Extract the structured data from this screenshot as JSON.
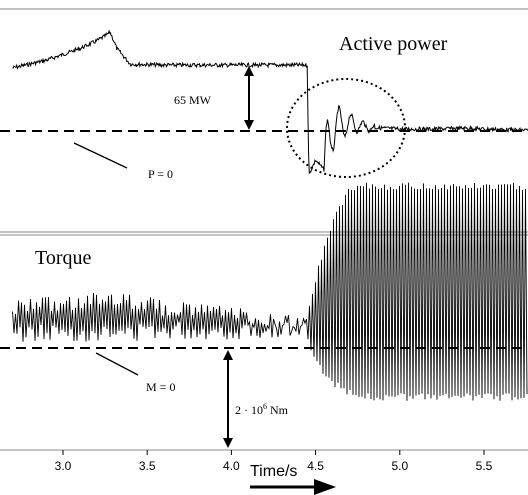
{
  "chart_data": [
    {
      "type": "line",
      "panel": "top",
      "title": "Active power",
      "annotations": {
        "step_label": "65 MW",
        "zero_label": "P = 0"
      },
      "series": [
        {
          "x": [
            2.7,
            2.9,
            3.1,
            3.2,
            3.25,
            3.28,
            3.32,
            3.4,
            3.6,
            3.8,
            4.0,
            4.2,
            4.4,
            4.45,
            4.46,
            4.5,
            4.55,
            4.6,
            4.7,
            4.8,
            5.0,
            5.2,
            5.4,
            5.5,
            5.7
          ],
          "values": [
            65,
            73,
            85,
            93,
            98,
            102,
            85,
            69,
            68,
            68,
            68,
            68,
            68,
            68,
            -45,
            -30,
            -40,
            5,
            8,
            4,
            2,
            2,
            3,
            2,
            1
          ]
        }
      ],
      "reference_line": {
        "y": 0,
        "style": "dashed"
      },
      "xlim": [
        2.7,
        5.7
      ]
    },
    {
      "type": "line",
      "panel": "bottom",
      "title": "Torque",
      "annotations": {
        "zero_label": "M = 0",
        "amplitude_base": "2 · 10",
        "amplitude_exp": "6",
        "amplitude_unit": " Nm"
      },
      "series": [
        {
          "x": [
            2.7,
            3.0,
            3.3,
            3.6,
            3.9,
            4.2,
            4.45,
            4.5,
            4.6,
            4.7,
            4.8,
            5.0,
            5.2,
            5.4,
            5.7
          ],
          "envelope_low": [
            0.1,
            0.15,
            0.1,
            0.2,
            0.15,
            0.2,
            0.2,
            -0.3,
            -0.7,
            -0.9,
            -1.0,
            -1.0,
            -1.0,
            -1.0,
            -1.0
          ],
          "envelope_high": [
            1.0,
            1.1,
            1.2,
            1.0,
            0.9,
            0.8,
            0.6,
            1.4,
            2.6,
            3.2,
            3.3,
            3.3,
            3.3,
            3.3,
            3.3
          ]
        }
      ],
      "reference_line": {
        "y": 0,
        "style": "dashed"
      },
      "xlim": [
        2.7,
        5.7
      ]
    }
  ],
  "x_axis": {
    "ticks": [
      3.0,
      3.5,
      4.0,
      4.5,
      5.0,
      5.5
    ],
    "tick_labels": [
      "3.0",
      "3.5",
      "4.0",
      "4.5",
      "5.0",
      "5.5"
    ],
    "label": "Time/s"
  }
}
